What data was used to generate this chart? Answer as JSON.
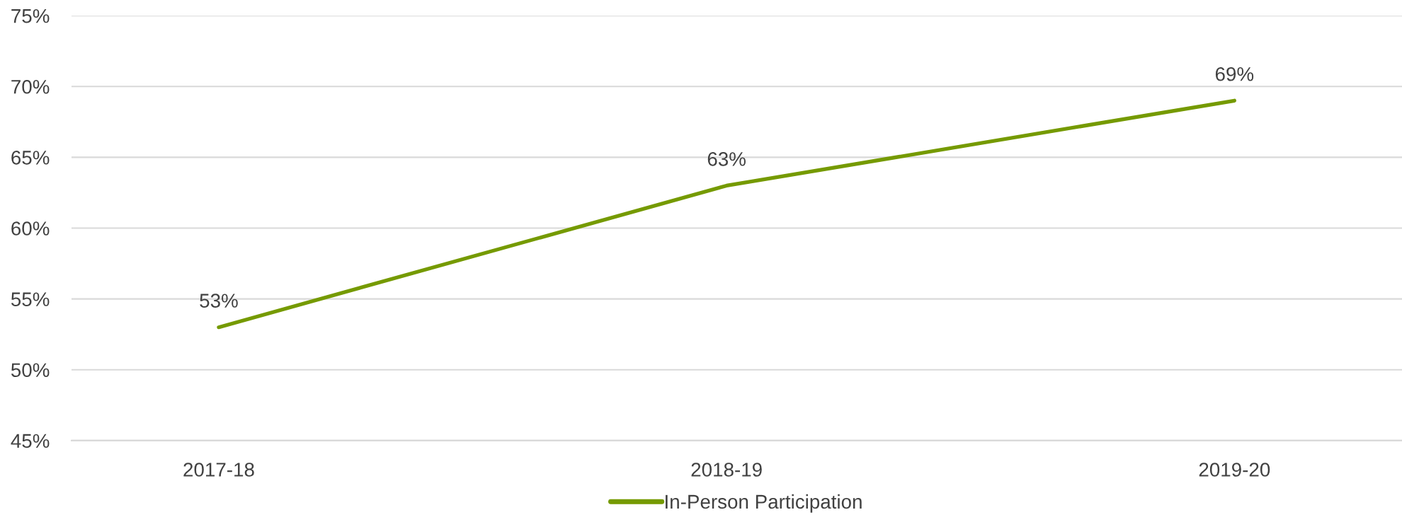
{
  "chart_data": {
    "type": "line",
    "categories": [
      "2017-18",
      "2018-19",
      "2019-20"
    ],
    "series": [
      {
        "name": "In-Person Participation",
        "color": "#759a00",
        "values": [
          53,
          63,
          69
        ],
        "value_labels": [
          "53%",
          "63%",
          "69%"
        ]
      }
    ],
    "ylim": [
      45,
      75
    ],
    "yticks": [
      {
        "value": 45,
        "label": "45%"
      },
      {
        "value": 50,
        "label": "50%"
      },
      {
        "value": 55,
        "label": "55%"
      },
      {
        "value": 60,
        "label": "60%"
      },
      {
        "value": 65,
        "label": "65%"
      },
      {
        "value": 70,
        "label": "70%"
      },
      {
        "value": 75,
        "label": "75%"
      }
    ],
    "grid": "y",
    "legend": "bottom",
    "marker": "none",
    "line_style": "solid"
  }
}
